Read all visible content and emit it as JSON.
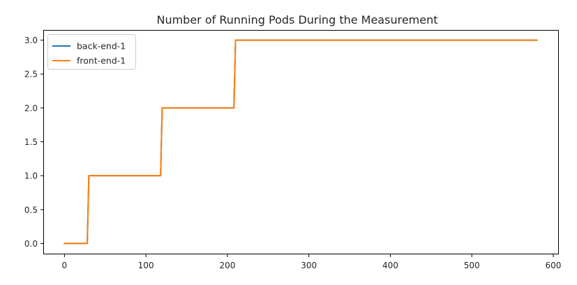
{
  "chart_data": {
    "type": "line",
    "title": "Number of Running Pods During the Measurement",
    "xlabel": "",
    "ylabel": "",
    "xlim": [
      -26,
      606
    ],
    "ylim": [
      -0.15,
      3.15
    ],
    "x_ticks": [
      0,
      100,
      200,
      300,
      400,
      500,
      600
    ],
    "x_tick_labels": [
      "0",
      "100",
      "200",
      "300",
      "400",
      "500",
      "600"
    ],
    "y_ticks": [
      0.0,
      0.5,
      1.0,
      1.5,
      2.0,
      2.5,
      3.0
    ],
    "y_tick_labels": [
      "0.0",
      "0.5",
      "1.0",
      "1.5",
      "2.0",
      "2.5",
      "3.0"
    ],
    "grid": false,
    "legend_position": "top-left",
    "series": [
      {
        "name": "back-end-1",
        "color": "#1f77b4",
        "points": [
          [
            0,
            0
          ],
          [
            28,
            0
          ],
          [
            30,
            1
          ],
          [
            118,
            1
          ],
          [
            120,
            2
          ],
          [
            208,
            2
          ],
          [
            210,
            3
          ],
          [
            580,
            3
          ]
        ]
      },
      {
        "name": "front-end-1",
        "color": "#ff7f0e",
        "points": [
          [
            0,
            0
          ],
          [
            28,
            0
          ],
          [
            30,
            1
          ],
          [
            118,
            1
          ],
          [
            120,
            2
          ],
          [
            208,
            2
          ],
          [
            210,
            3
          ],
          [
            580,
            3
          ]
        ]
      }
    ]
  }
}
